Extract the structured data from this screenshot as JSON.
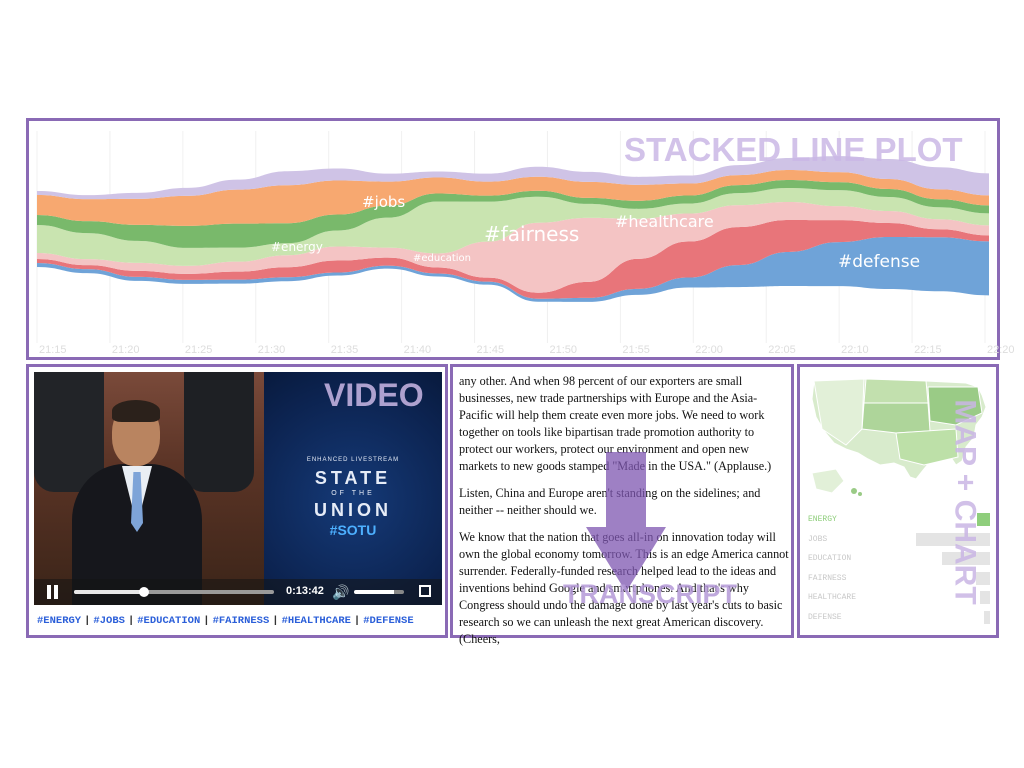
{
  "stream": {
    "watermark": "STACKED LINE PLOT",
    "topic_labels": {
      "jobs": "#jobs",
      "energy": "#energy",
      "education": "#education",
      "fairness": "#fairness",
      "healthcare": "#healthcare",
      "defense": "#defense"
    },
    "time_ticks": [
      "21:15",
      "21:20",
      "21:25",
      "21:30",
      "21:35",
      "21:40",
      "21:45",
      "21:50",
      "21:55",
      "22:00",
      "22:05",
      "22:10",
      "22:15",
      "22:20"
    ],
    "colors": {
      "defense": "#6fa3d8",
      "healthcare": "#e8757a",
      "fairness": "#f4c4c4",
      "education": "#c9e4b0",
      "energy": "#79b96b",
      "jobs": "#f7a870",
      "misc": "#cfc3e6"
    }
  },
  "video": {
    "watermark": "VIDEO",
    "overlay": {
      "enhanced": "ENHANCED LIVESTREAM",
      "state": "STATE",
      "of_the": "OF THE",
      "union": "UNION",
      "hashtag": "#SOTU"
    },
    "progress": 0.35,
    "time": "0:13:42",
    "volume": 0.8,
    "tags": [
      "#ENERGY",
      "#JOBS",
      "#EDUCATION",
      "#FAIRNESS",
      "#HEALTHCARE",
      "#DEFENSE"
    ]
  },
  "transcript": {
    "watermark": "TRANSCRIPT",
    "paragraphs": [
      "any other. And when 98 percent of our exporters are small businesses, new trade partnerships with Europe and the Asia-Pacific will help them create even more jobs. We need to work together on tools like bipartisan trade promotion authority to protect our workers, protect our environment and open new markets to new goods stamped \"Made in the USA.\" (Applause.)",
      "Listen, China and Europe aren't standing on the sidelines; and neither -- neither should we.",
      "We know that the nation that goes all-in on innovation today will own the global economy tomorrow. This is an edge America cannot surrender. Federally-funded research helped lead to the ideas and inventions behind Google and smartphones. And that's why Congress should undo the damage done by last year's cuts to basic research so we can unleash the next great American discovery. (Cheers,"
    ]
  },
  "map_chart": {
    "watermark": "MAP + CHART",
    "topics": [
      {
        "label": "ENERGY",
        "value": 0.11,
        "active": true
      },
      {
        "label": "JOBS",
        "value": 0.62,
        "active": false
      },
      {
        "label": "EDUCATION",
        "value": 0.4,
        "active": false
      },
      {
        "label": "FAIRNESS",
        "value": 0.12,
        "active": false
      },
      {
        "label": "HEALTHCARE",
        "value": 0.08,
        "active": false
      },
      {
        "label": "DEFENSE",
        "value": 0.05,
        "active": false
      }
    ],
    "active_color": "#8fce7c",
    "inactive_color": "#cfe5c2"
  }
}
